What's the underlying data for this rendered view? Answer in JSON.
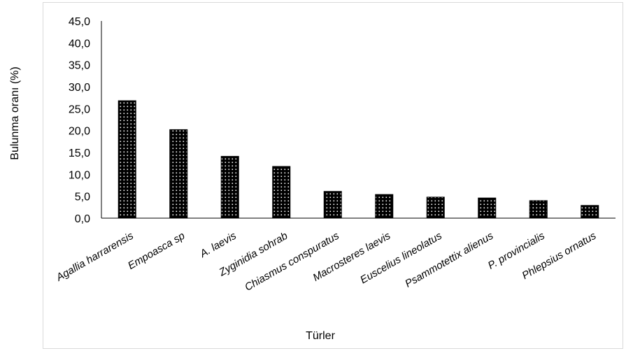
{
  "chart_data": {
    "type": "bar",
    "xlabel": "Türler",
    "ylabel": "Bulunma oranı (%)",
    "ylim": [
      0,
      45
    ],
    "yticks": [
      "0,0",
      "5,0",
      "10,0",
      "15,0",
      "20,0",
      "25,0",
      "30,0",
      "35,0",
      "40,0",
      "45,0"
    ],
    "categories": [
      "Agallia harrarensis",
      "Empoasca sp",
      "A. laevis",
      "Zyginidia sohrab",
      "Chiasmus conspuratus",
      "Macrosteres laevis",
      "Euscelius lineolatus",
      "Psammotettix alienus",
      "P. provincialis",
      "Phlepsius ornatus"
    ],
    "values": [
      26.8,
      20.2,
      14.1,
      11.8,
      6.1,
      5.4,
      4.8,
      4.6,
      4.0,
      2.9
    ],
    "grid": false,
    "legend": "none",
    "bar_color": "#000000",
    "pattern_dot_color": "#ffffff"
  }
}
